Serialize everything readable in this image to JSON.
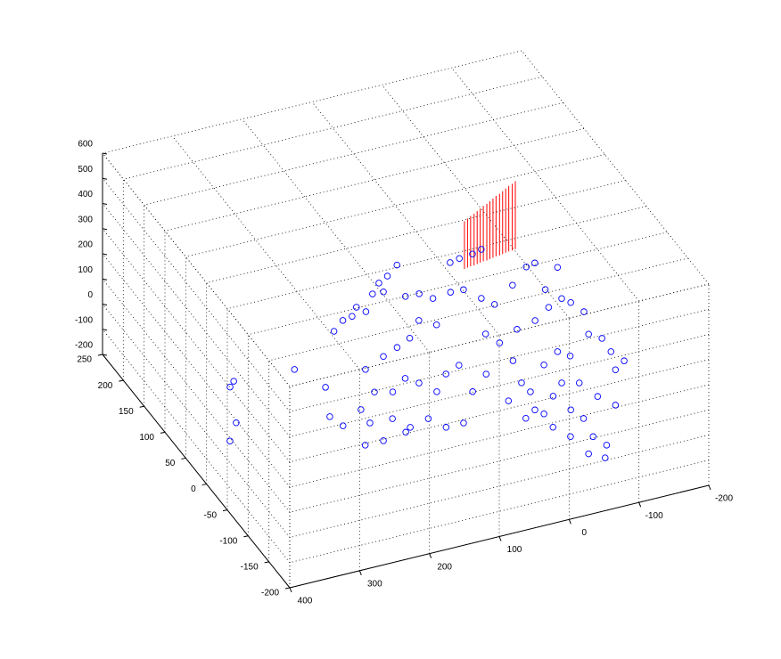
{
  "chart_data": {
    "type": "scatter3d",
    "xlim": [
      -200,
      400
    ],
    "ylim": [
      -200,
      250
    ],
    "zlim": [
      -200,
      600
    ],
    "xticks": [
      -200,
      -100,
      0,
      100,
      200,
      300,
      400
    ],
    "yticks": [
      -200,
      -150,
      -100,
      -50,
      0,
      50,
      100,
      150,
      200,
      250
    ],
    "zticks": [
      -200,
      -100,
      0,
      100,
      200,
      300,
      400,
      500,
      600
    ],
    "grid": true,
    "points": {
      "color": "#0000ff",
      "marker": "o",
      "x": [
        10,
        32,
        49,
        67,
        52,
        92,
        113,
        149,
        128,
        99,
        30,
        11,
        -1,
        -28,
        -46,
        -59,
        -69,
        -109,
        -143,
        -157,
        -144,
        -180,
        -155,
        -162,
        -169,
        -153,
        -165,
        -163,
        -170,
        -151,
        37,
        20,
        65,
        89,
        114,
        148,
        159,
        192,
        194,
        163,
        150,
        120,
        107,
        82,
        41,
        8,
        32,
        56,
        84,
        97,
        109,
        137,
        -37,
        -26,
        7,
        3,
        -23,
        -51,
        -74,
        -59,
        -66,
        -60,
        -68,
        -54,
        -38,
        -33,
        -21,
        -16,
        -28,
        -70,
        -99,
        -110,
        -95,
        -104,
        -117,
        -30,
        -38,
        -72,
        -102,
        -131,
        221,
        195,
        160,
        213,
        233,
        236,
        229,
        317,
        327,
        354,
        379,
        -71,
        -91,
        -106,
        -56
      ],
      "y": [
        197,
        183,
        175,
        160,
        159,
        134,
        132,
        115,
        129,
        145,
        143,
        142,
        129,
        132,
        131,
        110,
        95,
        119,
        143,
        146,
        99,
        130,
        78,
        68,
        48,
        10,
        -2,
        -27,
        -47,
        -58,
        99,
        85,
        74,
        64,
        55,
        41,
        1,
        -22,
        -47,
        -49,
        -70,
        -63,
        -84,
        -84,
        -37,
        -14,
        11,
        2,
        -23,
        -2,
        11,
        -6,
        -3,
        -42,
        -66,
        -101,
        -101,
        -76,
        -58,
        -105,
        -124,
        -157,
        -176,
        -196,
        -183,
        -148,
        -126,
        -91,
        -60,
        -22,
        -6,
        -18,
        -65,
        -94,
        -115,
        51,
        31,
        46,
        53,
        69,
        -81,
        -81,
        -76,
        28,
        69,
        -21,
        -41,
        74,
        66,
        6,
        -21,
        183,
        185,
        189,
        180
      ],
      "z": [
        0,
        0,
        0,
        0,
        0,
        0,
        0,
        0,
        0,
        0,
        0,
        0,
        0,
        0,
        0,
        0,
        0,
        0,
        0,
        0,
        0,
        0,
        0,
        0,
        0,
        0,
        0,
        0,
        0,
        0,
        0,
        0,
        0,
        0,
        0,
        0,
        0,
        0,
        0,
        0,
        0,
        0,
        0,
        0,
        0,
        0,
        0,
        0,
        0,
        0,
        0,
        0,
        0,
        0,
        0,
        0,
        0,
        0,
        0,
        0,
        0,
        0,
        0,
        0,
        0,
        0,
        0,
        0,
        0,
        0,
        0,
        0,
        0,
        0,
        0,
        0,
        0,
        0,
        0,
        0,
        0,
        0,
        0,
        0,
        0,
        0,
        0,
        0,
        0,
        0,
        0,
        0,
        0,
        0,
        0
      ]
    },
    "lines": {
      "color": "#ff0000",
      "x": [
        -67,
        -72,
        -77,
        -82,
        -87,
        -92,
        -97,
        -102,
        -107,
        -112,
        -117,
        -122,
        -127,
        -132,
        -137,
        -142,
        -147
      ],
      "y": [
        164,
        165,
        166,
        166,
        167,
        168,
        169,
        169,
        170,
        171,
        172,
        172,
        173,
        174,
        175,
        175,
        176
      ],
      "z_start": [
        0,
        0,
        0,
        0,
        0,
        0,
        0,
        0,
        0,
        0,
        0,
        0,
        0,
        0,
        0,
        0,
        0
      ],
      "z_end": [
        190,
        195,
        200,
        205,
        210,
        215,
        220,
        225,
        230,
        235,
        240,
        245,
        250,
        255,
        260,
        265,
        270
      ]
    }
  }
}
